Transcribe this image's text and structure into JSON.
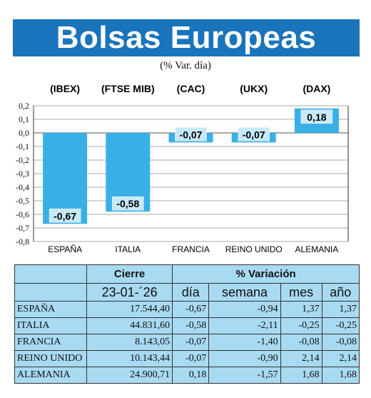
{
  "title": "Bolsas Europeas",
  "subtitle": "(% Var. día)",
  "chart_data": {
    "type": "bar",
    "indices": [
      "(IBEX)",
      "(FTSE MIB)",
      "(CAC)",
      "(UKX)",
      "(DAX)"
    ],
    "categories": [
      "ESPAÑA",
      "ITALIA",
      "FRANCIA",
      "REINO UNIDO",
      "ALEMANIA"
    ],
    "values": [
      -0.67,
      -0.58,
      -0.07,
      -0.07,
      0.18
    ],
    "value_labels": [
      "-0,67",
      "-0,58",
      "-0,07",
      "-0,07",
      "0,18"
    ],
    "ylim": [
      -0.8,
      0.2
    ],
    "yticks": [
      0.2,
      0.1,
      0.0,
      -0.1,
      -0.2,
      -0.3,
      -0.4,
      -0.5,
      -0.6,
      -0.7,
      -0.8
    ],
    "ytick_labels": [
      "0,2",
      "0,1",
      "0,0",
      "-0,1",
      "-0,2",
      "-0,3",
      "-0,4",
      "-0,5",
      "-0,6",
      "-0,7",
      "-0,8"
    ],
    "grid": "horizontal",
    "bar_color": "#39afe6"
  },
  "table": {
    "header1": [
      "Cierre",
      "% Variación"
    ],
    "header2": [
      "23-01-´26",
      "día",
      "semana",
      "mes",
      "año"
    ],
    "rows": [
      [
        "ESPAÑA",
        "17.544,40",
        "-0,67",
        "-0,94",
        "1,37",
        "1,37"
      ],
      [
        "ITALIA",
        "44.831,60",
        "-0,58",
        "-2,11",
        "-0,25",
        "-0,25"
      ],
      [
        "FRANCIA",
        "8.143,05",
        "-0,07",
        "-1,40",
        "-0,08",
        "-0,08"
      ],
      [
        "REINO UNIDO",
        "10.143,44",
        "-0,07",
        "-0,90",
        "2,14",
        "2,14"
      ],
      [
        "ALEMANIA",
        "24.900,71",
        "0,18",
        "-1,57",
        "1,68",
        "1,68"
      ]
    ]
  },
  "colors": {
    "title_bg": "#1a74bb",
    "table_bg": "#a8daf2",
    "bar": "#39afe6"
  }
}
